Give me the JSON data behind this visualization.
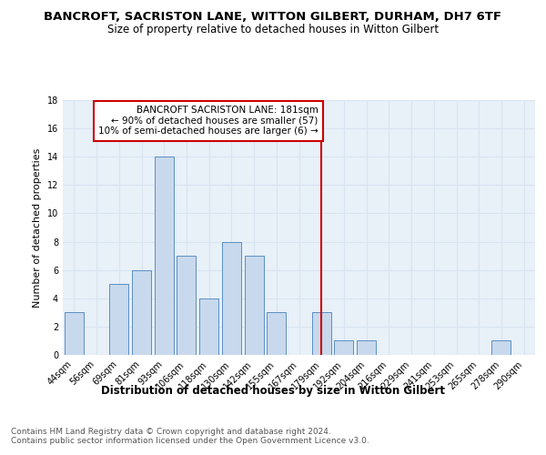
{
  "title": "BANCROFT, SACRISTON LANE, WITTON GILBERT, DURHAM, DH7 6TF",
  "subtitle": "Size of property relative to detached houses in Witton Gilbert",
  "xlabel": "Distribution of detached houses by size in Witton Gilbert",
  "ylabel": "Number of detached properties",
  "categories": [
    "44sqm",
    "56sqm",
    "69sqm",
    "81sqm",
    "93sqm",
    "106sqm",
    "118sqm",
    "130sqm",
    "142sqm",
    "155sqm",
    "167sqm",
    "179sqm",
    "192sqm",
    "204sqm",
    "216sqm",
    "229sqm",
    "241sqm",
    "253sqm",
    "265sqm",
    "278sqm",
    "290sqm"
  ],
  "values": [
    3,
    0,
    5,
    6,
    14,
    7,
    4,
    8,
    7,
    3,
    0,
    3,
    1,
    1,
    0,
    0,
    0,
    0,
    0,
    1,
    0
  ],
  "bar_color": "#c8d9ed",
  "bar_edge_color": "#5a8fc3",
  "vline_x_index": 11,
  "vline_color": "#cc0000",
  "annotation_line1": "BANCROFT SACRISTON LANE: 181sqm",
  "annotation_line2": "← 90% of detached houses are smaller (57)",
  "annotation_line3": "10% of semi-detached houses are larger (6) →",
  "annotation_box_color": "#ffffff",
  "annotation_box_edge_color": "#cc0000",
  "ylim": [
    0,
    18
  ],
  "yticks": [
    0,
    2,
    4,
    6,
    8,
    10,
    12,
    14,
    16,
    18
  ],
  "grid_color": "#d8e4f0",
  "background_color": "#e8f0f8",
  "footer_text": "Contains HM Land Registry data © Crown copyright and database right 2024.\nContains public sector information licensed under the Open Government Licence v3.0.",
  "title_fontsize": 9.5,
  "subtitle_fontsize": 8.5,
  "xlabel_fontsize": 8.5,
  "ylabel_fontsize": 8,
  "tick_fontsize": 7,
  "annotation_fontsize": 7.5,
  "footer_fontsize": 6.5
}
